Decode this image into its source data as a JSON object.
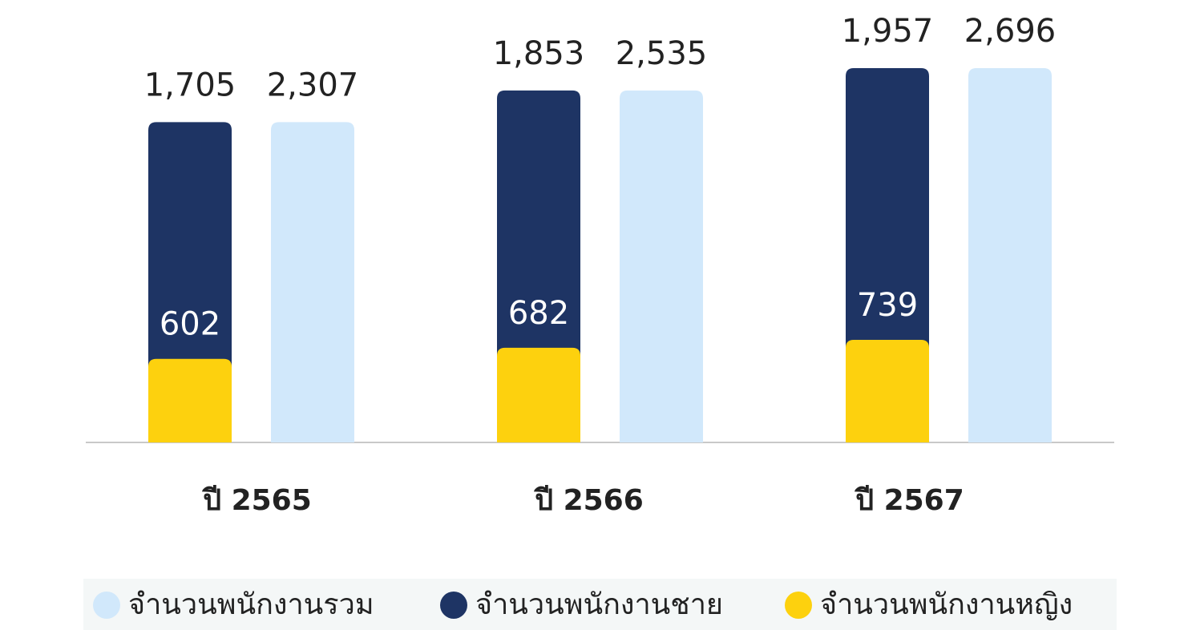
{
  "chart_data": {
    "type": "bar",
    "categories": [
      "ปี 2565",
      "ปี 2566",
      "ปี 2567"
    ],
    "series": [
      {
        "name": "จำนวนพนักงานรวม",
        "color": "#d1e8fb",
        "values": [
          2307,
          2535,
          2696
        ],
        "value_labels": [
          "2,307",
          "2,535",
          "2,696"
        ]
      },
      {
        "name": "จำนวนพนักงานชาย",
        "color": "#1e3464",
        "values": [
          1705,
          1853,
          1957
        ],
        "value_labels": [
          "1,705",
          "1,853",
          "1,957"
        ]
      },
      {
        "name": "จำนวนพนักงานหญิง",
        "color": "#fdd10e",
        "values": [
          602,
          682,
          739
        ]
      }
    ]
  }
}
